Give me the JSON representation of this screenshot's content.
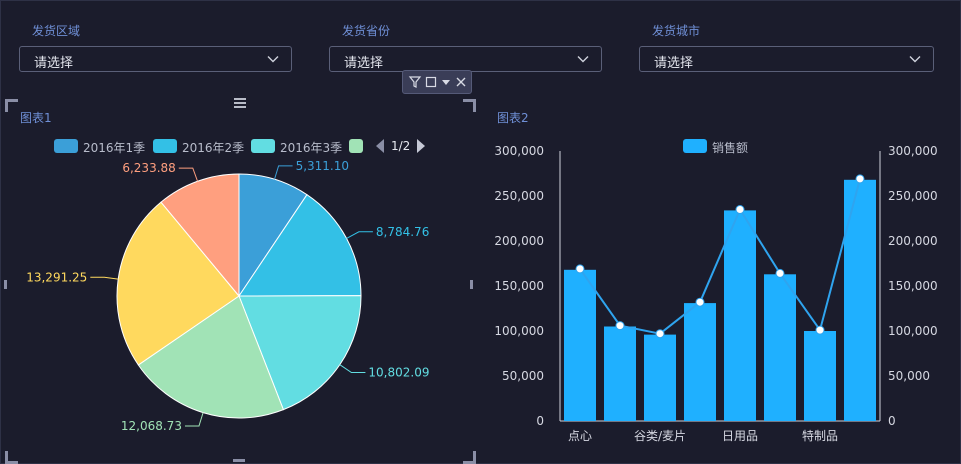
{
  "filters": [
    {
      "label": "发货区域",
      "value": "请选择"
    },
    {
      "label": "发货省份",
      "value": "请选择"
    },
    {
      "label": "发货城市",
      "value": "请选择"
    }
  ],
  "charts": {
    "chart1": {
      "title": "图表1"
    },
    "chart2": {
      "title": "图表2"
    }
  },
  "chart_data": [
    {
      "type": "pie",
      "title": "图表1",
      "legend": {
        "entries": [
          "2016年1季",
          "2016年2季",
          "2016年3季"
        ],
        "page": "1/2",
        "placement": "top"
      },
      "slices": [
        {
          "value": 5311.1,
          "label": "5,311.10",
          "color": "#3b9fd8"
        },
        {
          "value": 8784.76,
          "label": "8,784.76",
          "color": "#33c0e6"
        },
        {
          "value": 10802.09,
          "label": "10,802.09",
          "color": "#62dde2"
        },
        {
          "value": 12068.73,
          "label": "12,068.73",
          "color": "#a1e3b6"
        },
        {
          "value": 13291.25,
          "label": "13,291.25",
          "color": "#ffd95e"
        },
        {
          "value": 6233.88,
          "label": "6,233.88",
          "color": "#ff9f7f"
        }
      ]
    },
    {
      "type": "bar",
      "title": "图表2",
      "legend": {
        "entries": [
          "销售额"
        ],
        "placement": "top"
      },
      "x_tick_labels": [
        "点心",
        "谷类/麦片",
        "日用品",
        "特制品"
      ],
      "values": [
        168000,
        105000,
        96000,
        131000,
        234000,
        163000,
        100000,
        268000
      ],
      "line_values": [
        169000,
        106000,
        97000,
        132000,
        235000,
        164000,
        101000,
        269000
      ],
      "ylim": [
        0,
        300000
      ],
      "y_ticks": [
        "0",
        "50,000",
        "100,000",
        "150,000",
        "200,000",
        "250,000",
        "300,000"
      ],
      "colors": {
        "bar": "#1fb0ff",
        "line": "#2fa4ef",
        "point": "#ffffff"
      }
    }
  ]
}
